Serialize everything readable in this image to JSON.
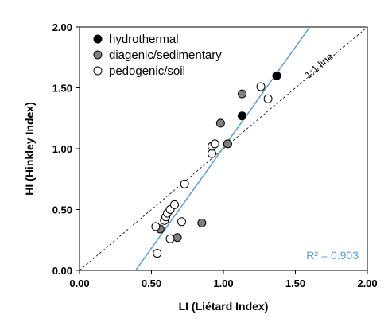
{
  "chart_data": {
    "type": "scatter",
    "xlabel": "LI (Liétard Index)",
    "ylabel": "HI (Hinkley Index)",
    "xlim": [
      0,
      2
    ],
    "ylim": [
      0,
      2
    ],
    "x_ticks": [
      "0.00",
      "0.50",
      "1.00",
      "1.50",
      "2.00"
    ],
    "y_ticks": [
      "0.00",
      "0.50",
      "1.00",
      "1.50",
      "2.00"
    ],
    "grid": false,
    "legend_position": "top-left",
    "series": [
      {
        "name": "hydrothermal",
        "marker_fill": "#000000",
        "points": [
          [
            1.13,
            1.27
          ],
          [
            1.37,
            1.6
          ]
        ]
      },
      {
        "name": "diagenic/sedimentary",
        "marker_fill": "#808080",
        "points": [
          [
            0.56,
            0.34
          ],
          [
            0.68,
            0.27
          ],
          [
            0.85,
            0.39
          ],
          [
            0.98,
            1.21
          ],
          [
            1.03,
            1.04
          ],
          [
            1.13,
            1.45
          ]
        ]
      },
      {
        "name": "pedogenic/soil",
        "marker_fill": "#ffffff",
        "points": [
          [
            0.54,
            0.14
          ],
          [
            0.53,
            0.36
          ],
          [
            0.59,
            0.41
          ],
          [
            0.6,
            0.44
          ],
          [
            0.61,
            0.47
          ],
          [
            0.63,
            0.5
          ],
          [
            0.66,
            0.54
          ],
          [
            0.71,
            0.4
          ],
          [
            0.73,
            0.71
          ],
          [
            0.63,
            0.26
          ],
          [
            0.92,
            0.96
          ],
          [
            0.92,
            1.02
          ],
          [
            0.94,
            1.04
          ],
          [
            1.26,
            1.51
          ],
          [
            1.31,
            1.41
          ]
        ]
      }
    ],
    "reference_line": {
      "label": "1:1 line",
      "from": [
        0,
        0
      ],
      "to": [
        2,
        2
      ]
    },
    "regression_line": {
      "from": [
        0.39,
        0
      ],
      "to": [
        1.6,
        2
      ],
      "color": "#5b9bd5"
    },
    "r_squared_label": "R² = 0.903"
  }
}
